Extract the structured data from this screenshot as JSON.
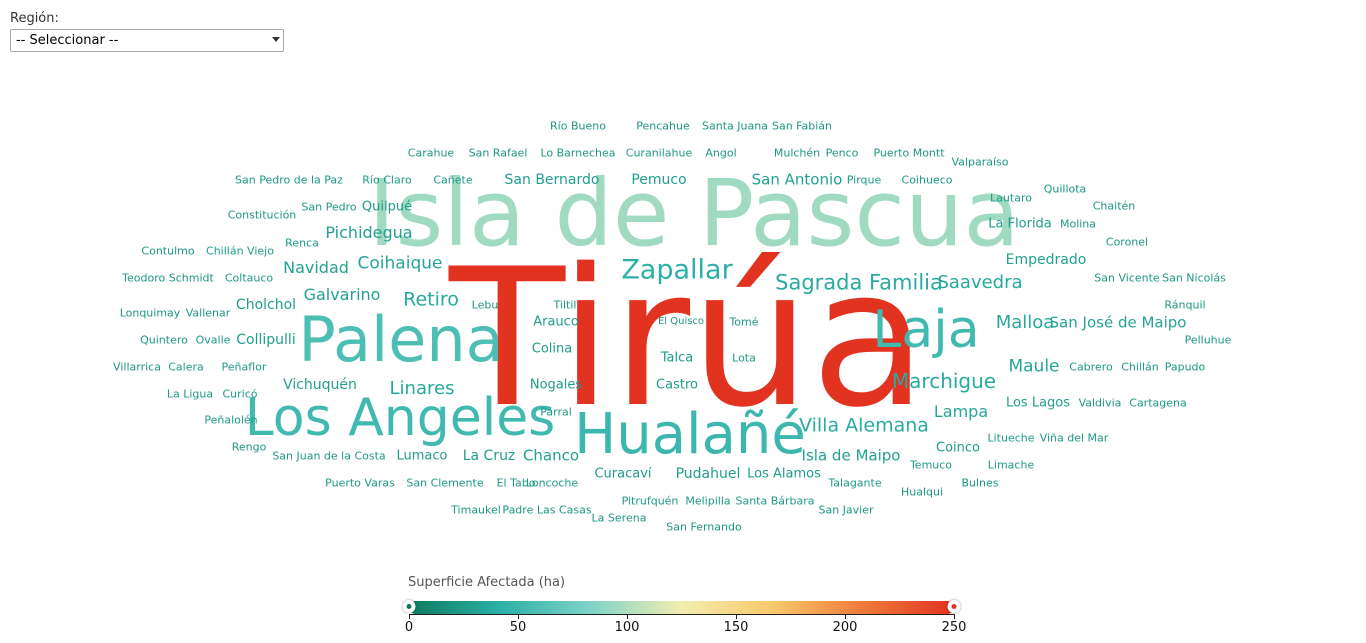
{
  "filter": {
    "label": "Región:",
    "selected": "-- Seleccionar --"
  },
  "legend": {
    "title": "Superficie Afectada (ha)",
    "min": 0,
    "max": 250,
    "range_low": 0,
    "range_high": 250,
    "ticks": [
      "0",
      "50",
      "100",
      "150",
      "200",
      "250"
    ],
    "colors": [
      "#0f7a5f",
      "#2bb0a6",
      "#7fd3c8",
      "#f3edb0",
      "#f8c96b",
      "#ee7a3a",
      "#e23220"
    ]
  },
  "cloud": {
    "words": [
      {
        "text": "Tirúa",
        "value": 250
      },
      {
        "text": "Isla de Pascua",
        "value": 95
      },
      {
        "text": "Palena",
        "value": 58
      },
      {
        "text": "Los Angeles",
        "value": 52
      },
      {
        "text": "Hualañé",
        "value": 50
      },
      {
        "text": "Laja",
        "value": 52
      },
      {
        "text": "Zapallar",
        "value": 42
      },
      {
        "text": "Sagrada Familia",
        "value": 38
      },
      {
        "text": "Saavedra",
        "value": 36
      },
      {
        "text": "Malloa",
        "value": 36
      },
      {
        "text": "Marchigue",
        "value": 38
      },
      {
        "text": "Villa Alemana",
        "value": 38
      },
      {
        "text": "Linares",
        "value": 36
      },
      {
        "text": "Retiro",
        "value": 36
      },
      {
        "text": "Coihaique",
        "value": 35
      },
      {
        "text": "Maule",
        "value": 34
      },
      {
        "text": "Lampa",
        "value": 34
      },
      {
        "text": "San José de Maipo",
        "value": 32
      },
      {
        "text": "Pichidegua",
        "value": 30
      },
      {
        "text": "Navidad",
        "value": 30
      },
      {
        "text": "Galvarino",
        "value": 30
      },
      {
        "text": "Empedrado",
        "value": 30
      },
      {
        "text": "Isla de Maipo",
        "value": 30
      },
      {
        "text": "Chanco",
        "value": 30
      },
      {
        "text": "San Antonio",
        "value": 30
      },
      {
        "text": "La Cruz",
        "value": 28
      },
      {
        "text": "Pemuco",
        "value": 28
      },
      {
        "text": "San Bernardo",
        "value": 28
      },
      {
        "text": "Vichuquén",
        "value": 28
      },
      {
        "text": "Collipulli",
        "value": 28
      },
      {
        "text": "Cholchol",
        "value": 28
      },
      {
        "text": "Los Lagos",
        "value": 28
      },
      {
        "text": "Pudahuel",
        "value": 28
      },
      {
        "text": "Talca",
        "value": 26
      },
      {
        "text": "Los Alamos",
        "value": 26
      },
      {
        "text": "Curacaví",
        "value": 26
      },
      {
        "text": "Arauco",
        "value": 26
      },
      {
        "text": "Colina",
        "value": 26
      },
      {
        "text": "Castro",
        "value": 26
      },
      {
        "text": "Nogales",
        "value": 26
      },
      {
        "text": "Coinco",
        "value": 26
      },
      {
        "text": "La Florida",
        "value": 26
      },
      {
        "text": "Quilpué",
        "value": 26
      },
      {
        "text": "Lumaco",
        "value": 26
      },
      {
        "text": "Renca",
        "value": 24
      },
      {
        "text": "Peñaflor",
        "value": 24
      },
      {
        "text": "Curanilahue",
        "value": 24
      },
      {
        "text": "Angol",
        "value": 24
      },
      {
        "text": "Mulchén",
        "value": 24
      },
      {
        "text": "Cañete",
        "value": 24
      },
      {
        "text": "Lautaro",
        "value": 24
      },
      {
        "text": "Molina",
        "value": 24
      },
      {
        "text": "Pirque",
        "value": 24
      },
      {
        "text": "Coihueco",
        "value": 24
      },
      {
        "text": "Tomé",
        "value": 24
      },
      {
        "text": "Lota",
        "value": 24
      },
      {
        "text": "Cabrero",
        "value": 24
      },
      {
        "text": "Chillán",
        "value": 24
      },
      {
        "text": "Talagante",
        "value": 24
      },
      {
        "text": "Temuco",
        "value": 24
      },
      {
        "text": "Litueche",
        "value": 24
      },
      {
        "text": "Limache",
        "value": 24
      },
      {
        "text": "Pitrufquén",
        "value": 24
      },
      {
        "text": "Melipilla",
        "value": 24
      },
      {
        "text": "Santa Bárbara",
        "value": 24
      },
      {
        "text": "Loncoche",
        "value": 24
      },
      {
        "text": "San Clemente",
        "value": 24
      },
      {
        "text": "San Juan de la Costa",
        "value": 24
      },
      {
        "text": "Curicó",
        "value": 24
      },
      {
        "text": "Calera",
        "value": 24
      },
      {
        "text": "Ovalle",
        "value": 24
      },
      {
        "text": "Vallenar",
        "value": 24
      },
      {
        "text": "Coltauco",
        "value": 24
      },
      {
        "text": "Chillán Viejo",
        "value": 24
      },
      {
        "text": "San Pedro",
        "value": 24
      },
      {
        "text": "Río Claro",
        "value": 24
      },
      {
        "text": "Constitución",
        "value": 22
      },
      {
        "text": "San Pedro de la Paz",
        "value": 22
      },
      {
        "text": "Carahue",
        "value": 22
      },
      {
        "text": "San Rafael",
        "value": 22
      },
      {
        "text": "Lo Barnechea",
        "value": 22
      },
      {
        "text": "Río Bueno",
        "value": 22
      },
      {
        "text": "Pencahue",
        "value": 22
      },
      {
        "text": "Santa Juana",
        "value": 22
      },
      {
        "text": "San Fabián",
        "value": 22
      },
      {
        "text": "Penco",
        "value": 22
      },
      {
        "text": "Puerto Montt",
        "value": 22
      },
      {
        "text": "Valparaíso",
        "value": 22
      },
      {
        "text": "Quillota",
        "value": 22
      },
      {
        "text": "Chaitén",
        "value": 22
      },
      {
        "text": "Coronel",
        "value": 22
      },
      {
        "text": "San Vicente",
        "value": 22
      },
      {
        "text": "San Nicolás",
        "value": 22
      },
      {
        "text": "Ránquil",
        "value": 22
      },
      {
        "text": "Pelluhue",
        "value": 22
      },
      {
        "text": "Papudo",
        "value": 22
      },
      {
        "text": "Valdivia",
        "value": 22
      },
      {
        "text": "Cartagena",
        "value": 22
      },
      {
        "text": "Viña del Mar",
        "value": 22
      },
      {
        "text": "Bulnes",
        "value": 22
      },
      {
        "text": "Hualqui",
        "value": 22
      },
      {
        "text": "San Javier",
        "value": 22
      },
      {
        "text": "San Fernando",
        "value": 22
      },
      {
        "text": "La Serena",
        "value": 22
      },
      {
        "text": "Padre Las Casas",
        "value": 22
      },
      {
        "text": "Timaukel",
        "value": 22
      },
      {
        "text": "Puerto Varas",
        "value": 22
      },
      {
        "text": "El Tabo",
        "value": 22
      },
      {
        "text": "Rengo",
        "value": 22
      },
      {
        "text": "Peñalolén",
        "value": 22
      },
      {
        "text": "La Ligua",
        "value": 22
      },
      {
        "text": "Villarrica",
        "value": 22
      },
      {
        "text": "Quintero",
        "value": 22
      },
      {
        "text": "Lonquimay",
        "value": 22
      },
      {
        "text": "Teodoro Schmidt",
        "value": 22
      },
      {
        "text": "Contulmo",
        "value": 22
      },
      {
        "text": "Lebu",
        "value": 22
      },
      {
        "text": "Tiltil",
        "value": 22
      },
      {
        "text": "Parral",
        "value": 22
      },
      {
        "text": "El Quisco",
        "value": 22
      }
    ]
  }
}
